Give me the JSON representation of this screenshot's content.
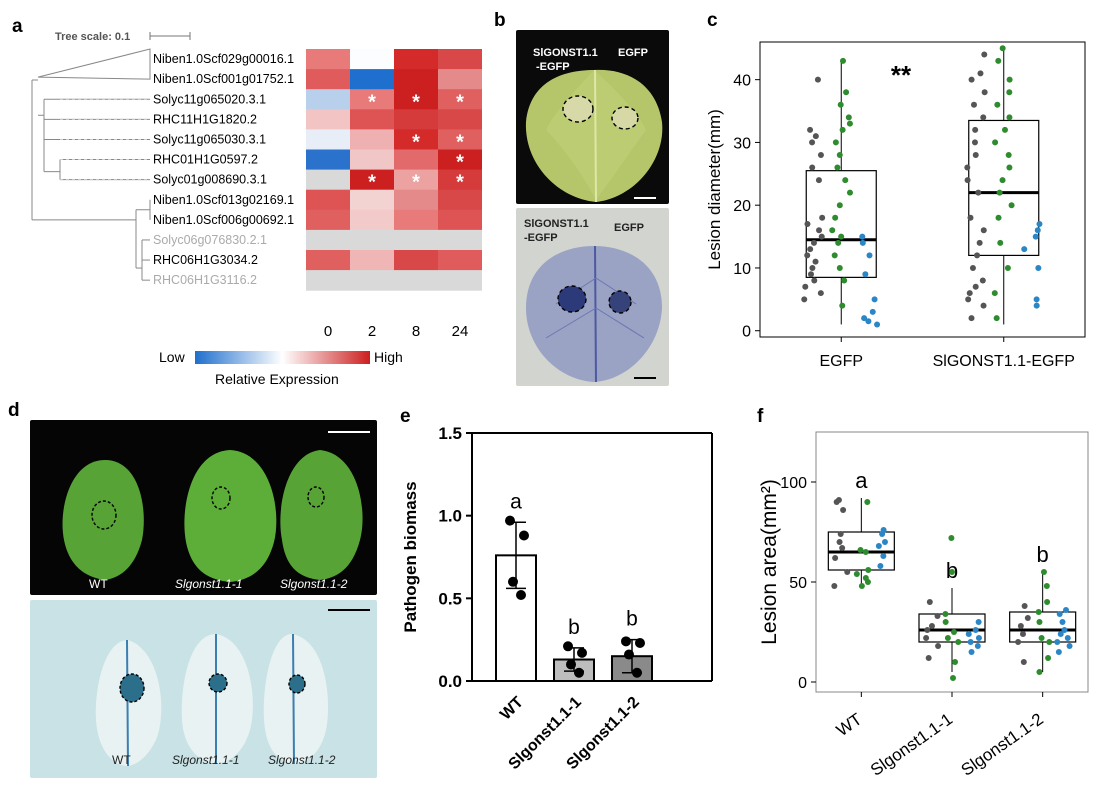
{
  "panels": {
    "a": {
      "label": "a",
      "tree_scale": "Tree scale: 0.1",
      "genes": [
        {
          "name": "Niben1.0Scf029g00016.1",
          "muted": false
        },
        {
          "name": "Niben1.0Scf001g01752.1",
          "muted": false
        },
        {
          "name": "Solyc11g065020.3.1",
          "muted": false
        },
        {
          "name": "RHC11H1G1820.2",
          "muted": false
        },
        {
          "name": "Solyc11g065030.3.1",
          "muted": false
        },
        {
          "name": "RHC01H1G0597.2",
          "muted": false
        },
        {
          "name": "Solyc01g008690.3.1",
          "muted": false
        },
        {
          "name": "Niben1.0Scf013g02169.1",
          "muted": false
        },
        {
          "name": "Niben1.0Scf006g00692.1",
          "muted": false
        },
        {
          "name": "Solyc06g076830.2.1",
          "muted": true
        },
        {
          "name": "RHC06H1G3034.2",
          "muted": false
        },
        {
          "name": "RHC06H1G3116.2",
          "muted": true
        }
      ],
      "timepoints": [
        "0",
        "2",
        "8",
        "24"
      ],
      "heatmap": [
        [
          "#e87a7a",
          "#fbfdff",
          "#d42a2a",
          "#d84848"
        ],
        [
          "#e05c5c",
          "#1f6fce",
          "#cc1f1f",
          "#e58a8a"
        ],
        [
          "#b8d0ec",
          "#e87a7a",
          "#cc1f1f",
          "#e06060"
        ],
        [
          "#f2c4c4",
          "#de5454",
          "#d63b3b",
          "#d84848"
        ],
        [
          "#e8eef8",
          "#eeb0b0",
          "#d42a2a",
          "#e06060"
        ],
        [
          "#2a72cc",
          "#f1c6c6",
          "#e36a6a",
          "#cc1f1f"
        ],
        [
          "#d9d9d9",
          "#cc1f1f",
          "#eda2a2",
          "#d63b3b"
        ],
        [
          "#de5454",
          "#f3d2d2",
          "#e58a8a",
          "#d84848"
        ],
        [
          "#e06060",
          "#f2caca",
          "#e87a7a",
          "#de5454"
        ],
        [
          "#d9d9d9",
          "#d9d9d9",
          "#d9d9d9",
          "#d9d9d9"
        ],
        [
          "#e06060",
          "#f0b6b6",
          "#d84848",
          "#e05c5c"
        ],
        [
          "#d9d9d9",
          "#d9d9d9",
          "#d9d9d9",
          "#d9d9d9"
        ]
      ],
      "stars": [
        [
          2,
          1
        ],
        [
          2,
          2
        ],
        [
          2,
          3
        ],
        [
          4,
          2
        ],
        [
          4,
          3
        ],
        [
          5,
          3
        ],
        [
          6,
          1
        ],
        [
          6,
          2
        ],
        [
          6,
          3
        ]
      ],
      "star_symbol": "*",
      "legend_low": "Low",
      "legend_high": "High",
      "legend_title": "Relative Expression",
      "colors": {
        "low": "#1f6fce",
        "mid": "#ffffff",
        "high": "#cc1f1f",
        "na": "#d9d9d9"
      }
    },
    "b": {
      "label": "b",
      "top_left_label_1": "SlGONST1.1",
      "top_left_label_2": "-EGFP",
      "top_right_label": "EGFP",
      "bottom_left_label_1": "SlGONST1.1",
      "bottom_left_label_2": "-EGFP",
      "bottom_right_label": "EGFP"
    },
    "c": {
      "label": "c",
      "significance": "**"
    },
    "d": {
      "label": "d",
      "top_labels": [
        "WT",
        "Slgonst1.1-1",
        "Slgonst1.1-2"
      ],
      "bottom_labels": [
        "WT",
        "Slgonst1.1-1",
        "Slgonst1.1-2"
      ]
    },
    "e": {
      "label": "e",
      "letters": [
        "a",
        "b",
        "b"
      ]
    },
    "f": {
      "label": "f",
      "letters": [
        "a",
        "b",
        "b"
      ]
    }
  },
  "chart_data": [
    {
      "panel": "c",
      "type": "box",
      "ylabel": "Lesion diameter(mm)",
      "categories": [
        "EGFP",
        "SlGONST1.1-EGFP"
      ],
      "ylim": [
        -1,
        46
      ],
      "yticks": [
        0,
        10,
        20,
        30,
        40
      ],
      "boxes": [
        {
          "whisker_low": 1,
          "q1": 8.5,
          "median": 14.5,
          "q3": 25.5,
          "whisker_high": 43
        },
        {
          "whisker_low": 1,
          "q1": 12,
          "median": 22,
          "q3": 33.5,
          "whisker_high": 45
        }
      ],
      "point_colors": {
        "rep1": "#555555",
        "rep2": "#2e8b2e",
        "rep3": "#2b86c5"
      },
      "points": [
        [
          [
            5,
            "rep1"
          ],
          [
            6,
            "rep1"
          ],
          [
            7,
            "rep1"
          ],
          [
            8,
            "rep1"
          ],
          [
            9,
            "rep1"
          ],
          [
            10,
            "rep1"
          ],
          [
            11,
            "rep1"
          ],
          [
            12,
            "rep1"
          ],
          [
            13,
            "rep1"
          ],
          [
            14,
            "rep1"
          ],
          [
            15,
            "rep1"
          ],
          [
            16,
            "rep1"
          ],
          [
            17,
            "rep1"
          ],
          [
            18,
            "rep1"
          ],
          [
            24,
            "rep1"
          ],
          [
            26,
            "rep1"
          ],
          [
            28,
            "rep1"
          ],
          [
            30,
            "rep1"
          ],
          [
            31,
            "rep1"
          ],
          [
            32,
            "rep1"
          ],
          [
            40,
            "rep1"
          ],
          [
            4,
            "rep2"
          ],
          [
            8,
            "rep2"
          ],
          [
            10,
            "rep2"
          ],
          [
            12,
            "rep2"
          ],
          [
            14,
            "rep2"
          ],
          [
            15,
            "rep2"
          ],
          [
            16,
            "rep2"
          ],
          [
            18,
            "rep2"
          ],
          [
            20,
            "rep2"
          ],
          [
            22,
            "rep2"
          ],
          [
            24,
            "rep2"
          ],
          [
            26,
            "rep2"
          ],
          [
            28,
            "rep2"
          ],
          [
            30,
            "rep2"
          ],
          [
            32,
            "rep2"
          ],
          [
            33,
            "rep2"
          ],
          [
            34,
            "rep2"
          ],
          [
            36,
            "rep2"
          ],
          [
            38,
            "rep2"
          ],
          [
            43,
            "rep2"
          ],
          [
            1,
            "rep3"
          ],
          [
            1.5,
            "rep3"
          ],
          [
            2,
            "rep3"
          ],
          [
            3,
            "rep3"
          ],
          [
            5,
            "rep3"
          ],
          [
            9,
            "rep3"
          ],
          [
            12,
            "rep3"
          ],
          [
            14,
            "rep3"
          ],
          [
            15,
            "rep3"
          ]
        ],
        [
          [
            2,
            "rep1"
          ],
          [
            4,
            "rep1"
          ],
          [
            5,
            "rep1"
          ],
          [
            6,
            "rep1"
          ],
          [
            7,
            "rep1"
          ],
          [
            8,
            "rep1"
          ],
          [
            10,
            "rep1"
          ],
          [
            12,
            "rep1"
          ],
          [
            14,
            "rep1"
          ],
          [
            16,
            "rep1"
          ],
          [
            18,
            "rep1"
          ],
          [
            22,
            "rep1"
          ],
          [
            24,
            "rep1"
          ],
          [
            26,
            "rep1"
          ],
          [
            28,
            "rep1"
          ],
          [
            30,
            "rep1"
          ],
          [
            32,
            "rep1"
          ],
          [
            34,
            "rep1"
          ],
          [
            36,
            "rep1"
          ],
          [
            38,
            "rep1"
          ],
          [
            40,
            "rep1"
          ],
          [
            41,
            "rep1"
          ],
          [
            44,
            "rep1"
          ],
          [
            2,
            "rep2"
          ],
          [
            6,
            "rep2"
          ],
          [
            10,
            "rep2"
          ],
          [
            14,
            "rep2"
          ],
          [
            18,
            "rep2"
          ],
          [
            20,
            "rep2"
          ],
          [
            22,
            "rep2"
          ],
          [
            24,
            "rep2"
          ],
          [
            26,
            "rep2"
          ],
          [
            28,
            "rep2"
          ],
          [
            30,
            "rep2"
          ],
          [
            32,
            "rep2"
          ],
          [
            34,
            "rep2"
          ],
          [
            36,
            "rep2"
          ],
          [
            38,
            "rep2"
          ],
          [
            40,
            "rep2"
          ],
          [
            43,
            "rep2"
          ],
          [
            45,
            "rep2"
          ],
          [
            4,
            "rep3"
          ],
          [
            5,
            "rep3"
          ],
          [
            10,
            "rep3"
          ],
          [
            13,
            "rep3"
          ],
          [
            15,
            "rep3"
          ],
          [
            16,
            "rep3"
          ],
          [
            17,
            "rep3"
          ]
        ]
      ]
    },
    {
      "panel": "e",
      "type": "bar",
      "ylabel": "Pathogen biomass",
      "categories": [
        "WT",
        "Slgonst1.1-1",
        "Slgonst1.1-2"
      ],
      "values": [
        0.76,
        0.13,
        0.15
      ],
      "errors": [
        0.2,
        0.07,
        0.1
      ],
      "points": [
        [
          0.97,
          0.88,
          0.6,
          0.52
        ],
        [
          0.21,
          0.17,
          0.1,
          0.05
        ],
        [
          0.24,
          0.23,
          0.16,
          0.05
        ]
      ],
      "ylim": [
        0,
        1.5
      ],
      "yticks": [
        0.0,
        0.5,
        1.0,
        1.5
      ],
      "bar_colors": [
        "#ffffff",
        "#bdbdbd",
        "#8a8a8a"
      ]
    },
    {
      "panel": "f",
      "type": "box",
      "ylabel": "Lesion area(mm²)",
      "categories": [
        "WT",
        "Slgonst1.1-1",
        "Slgonst1.1-2"
      ],
      "ylim": [
        -5,
        125
      ],
      "yticks": [
        0,
        50,
        100
      ],
      "boxes": [
        {
          "whisker_low": 48,
          "q1": 56,
          "median": 65,
          "q3": 75,
          "whisker_high": 92
        },
        {
          "whisker_low": 5,
          "q1": 20,
          "median": 26,
          "q3": 34,
          "whisker_high": 47
        },
        {
          "whisker_low": 5,
          "q1": 20,
          "median": 26,
          "q3": 35,
          "whisker_high": 55
        }
      ],
      "point_colors": {
        "rep1": "#555555",
        "rep2": "#2e8b2e",
        "rep3": "#2b86c5"
      },
      "points": [
        [
          [
            48,
            "rep1"
          ],
          [
            55,
            "rep1"
          ],
          [
            62,
            "rep1"
          ],
          [
            67,
            "rep1"
          ],
          [
            70,
            "rep1"
          ],
          [
            74,
            "rep1"
          ],
          [
            86,
            "rep1"
          ],
          [
            90,
            "rep1"
          ],
          [
            91,
            "rep1"
          ],
          [
            48,
            "rep2"
          ],
          [
            50,
            "rep2"
          ],
          [
            52,
            "rep2"
          ],
          [
            54,
            "rep2"
          ],
          [
            56,
            "rep2"
          ],
          [
            65,
            "rep2"
          ],
          [
            66,
            "rep2"
          ],
          [
            90,
            "rep2"
          ],
          [
            58,
            "rep3"
          ],
          [
            63,
            "rep3"
          ],
          [
            68,
            "rep3"
          ],
          [
            70,
            "rep3"
          ],
          [
            74,
            "rep3"
          ],
          [
            76,
            "rep3"
          ]
        ],
        [
          [
            12,
            "rep1"
          ],
          [
            18,
            "rep1"
          ],
          [
            22,
            "rep1"
          ],
          [
            26,
            "rep1"
          ],
          [
            28,
            "rep1"
          ],
          [
            33,
            "rep1"
          ],
          [
            40,
            "rep1"
          ],
          [
            2,
            "rep2"
          ],
          [
            10,
            "rep2"
          ],
          [
            20,
            "rep2"
          ],
          [
            22,
            "rep2"
          ],
          [
            25,
            "rep2"
          ],
          [
            30,
            "rep2"
          ],
          [
            34,
            "rep2"
          ],
          [
            55,
            "rep2"
          ],
          [
            72,
            "rep2"
          ],
          [
            15,
            "rep3"
          ],
          [
            18,
            "rep3"
          ],
          [
            20,
            "rep3"
          ],
          [
            22,
            "rep3"
          ],
          [
            24,
            "rep3"
          ],
          [
            26,
            "rep3"
          ],
          [
            30,
            "rep3"
          ]
        ],
        [
          [
            10,
            "rep1"
          ],
          [
            20,
            "rep1"
          ],
          [
            24,
            "rep1"
          ],
          [
            28,
            "rep1"
          ],
          [
            32,
            "rep1"
          ],
          [
            38,
            "rep1"
          ],
          [
            5,
            "rep2"
          ],
          [
            12,
            "rep2"
          ],
          [
            20,
            "rep2"
          ],
          [
            22,
            "rep2"
          ],
          [
            30,
            "rep2"
          ],
          [
            35,
            "rep2"
          ],
          [
            40,
            "rep2"
          ],
          [
            48,
            "rep2"
          ],
          [
            55,
            "rep2"
          ],
          [
            15,
            "rep3"
          ],
          [
            18,
            "rep3"
          ],
          [
            20,
            "rep3"
          ],
          [
            22,
            "rep3"
          ],
          [
            24,
            "rep3"
          ],
          [
            26,
            "rep3"
          ],
          [
            30,
            "rep3"
          ],
          [
            34,
            "rep3"
          ],
          [
            36,
            "rep3"
          ]
        ]
      ]
    }
  ]
}
